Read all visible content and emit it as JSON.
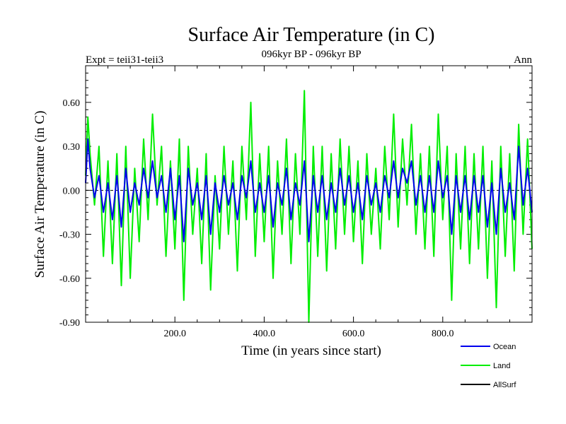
{
  "chart_data": {
    "type": "line",
    "title": "Surface Air Temperature (in C)",
    "subtitle": "096kyr BP - 096kyr BP",
    "left_label": "Expt = teii31-teii3",
    "right_label": "Ann",
    "xlabel": "Time (in years since start)",
    "ylabel": "Surface Air Temperature (in C)",
    "xlim": [
      0,
      1000
    ],
    "ylim": [
      -0.9,
      0.85
    ],
    "xticks": [
      200,
      400,
      600,
      800
    ],
    "xtick_labels": [
      "200.0",
      "400.0",
      "600.0",
      "800.0"
    ],
    "yticks": [
      -0.9,
      -0.6,
      -0.3,
      0.0,
      0.3,
      0.6
    ],
    "ytick_labels": [
      "-0.90",
      "-0.60",
      "-0.30",
      "0.00",
      "0.30",
      "0.60"
    ],
    "zero_line": true,
    "grid": false,
    "legend_position": "bottom-right",
    "series": [
      {
        "name": "Land",
        "color": "#00ee00",
        "points": [
          [
            0,
            0.1
          ],
          [
            5,
            0.5
          ],
          [
            10,
            0.25
          ],
          [
            20,
            -0.1
          ],
          [
            30,
            0.3
          ],
          [
            40,
            -0.45
          ],
          [
            50,
            0.2
          ],
          [
            60,
            -0.5
          ],
          [
            70,
            0.25
          ],
          [
            80,
            -0.65
          ],
          [
            90,
            0.3
          ],
          [
            100,
            -0.6
          ],
          [
            110,
            0.15
          ],
          [
            120,
            -0.35
          ],
          [
            130,
            0.35
          ],
          [
            140,
            -0.2
          ],
          [
            150,
            0.52
          ],
          [
            160,
            -0.1
          ],
          [
            170,
            0.3
          ],
          [
            180,
            -0.45
          ],
          [
            190,
            0.2
          ],
          [
            200,
            -0.4
          ],
          [
            210,
            0.35
          ],
          [
            220,
            -0.75
          ],
          [
            230,
            0.3
          ],
          [
            240,
            -0.3
          ],
          [
            250,
            0.15
          ],
          [
            260,
            -0.5
          ],
          [
            270,
            0.25
          ],
          [
            280,
            -0.68
          ],
          [
            290,
            0.1
          ],
          [
            300,
            -0.4
          ],
          [
            310,
            0.3
          ],
          [
            320,
            -0.3
          ],
          [
            330,
            0.2
          ],
          [
            340,
            -0.55
          ],
          [
            350,
            0.3
          ],
          [
            360,
            -0.2
          ],
          [
            370,
            0.6
          ],
          [
            380,
            -0.45
          ],
          [
            390,
            0.25
          ],
          [
            400,
            -0.35
          ],
          [
            410,
            0.3
          ],
          [
            420,
            -0.6
          ],
          [
            430,
            0.2
          ],
          [
            440,
            -0.3
          ],
          [
            450,
            0.35
          ],
          [
            460,
            -0.5
          ],
          [
            470,
            0.25
          ],
          [
            480,
            -0.3
          ],
          [
            490,
            0.68
          ],
          [
            500,
            -0.9
          ],
          [
            510,
            0.3
          ],
          [
            520,
            -0.45
          ],
          [
            530,
            0.3
          ],
          [
            540,
            -0.55
          ],
          [
            550,
            0.25
          ],
          [
            560,
            -0.4
          ],
          [
            570,
            0.35
          ],
          [
            580,
            -0.3
          ],
          [
            590,
            0.3
          ],
          [
            600,
            -0.35
          ],
          [
            610,
            0.2
          ],
          [
            620,
            -0.5
          ],
          [
            630,
            0.25
          ],
          [
            640,
            -0.3
          ],
          [
            650,
            0.15
          ],
          [
            660,
            -0.4
          ],
          [
            670,
            0.3
          ],
          [
            680,
            -0.2
          ],
          [
            690,
            0.52
          ],
          [
            700,
            -0.25
          ],
          [
            710,
            0.35
          ],
          [
            720,
            -0.1
          ],
          [
            730,
            0.45
          ],
          [
            740,
            -0.3
          ],
          [
            750,
            0.25
          ],
          [
            760,
            -0.4
          ],
          [
            770,
            0.3
          ],
          [
            780,
            -0.45
          ],
          [
            790,
            0.52
          ],
          [
            800,
            -0.2
          ],
          [
            810,
            0.3
          ],
          [
            820,
            -0.75
          ],
          [
            830,
            0.25
          ],
          [
            840,
            -0.4
          ],
          [
            850,
            0.3
          ],
          [
            860,
            -0.5
          ],
          [
            870,
            0.25
          ],
          [
            880,
            -0.4
          ],
          [
            890,
            0.3
          ],
          [
            900,
            -0.6
          ],
          [
            910,
            0.2
          ],
          [
            920,
            -0.8
          ],
          [
            930,
            0.3
          ],
          [
            940,
            -0.45
          ],
          [
            950,
            0.25
          ],
          [
            960,
            -0.55
          ],
          [
            970,
            0.45
          ],
          [
            980,
            -0.3
          ],
          [
            990,
            0.35
          ],
          [
            1000,
            -0.4
          ]
        ]
      },
      {
        "name": "Ocean",
        "color": "#0000ee",
        "points": [
          [
            0,
            0.05
          ],
          [
            5,
            0.35
          ],
          [
            10,
            0.15
          ],
          [
            20,
            -0.05
          ],
          [
            30,
            0.1
          ],
          [
            40,
            -0.15
          ],
          [
            50,
            0.05
          ],
          [
            60,
            -0.2
          ],
          [
            70,
            0.1
          ],
          [
            80,
            -0.25
          ],
          [
            90,
            0.15
          ],
          [
            100,
            -0.15
          ],
          [
            110,
            0.05
          ],
          [
            120,
            -0.1
          ],
          [
            130,
            0.15
          ],
          [
            140,
            -0.05
          ],
          [
            150,
            0.2
          ],
          [
            160,
            -0.05
          ],
          [
            170,
            0.1
          ],
          [
            180,
            -0.15
          ],
          [
            190,
            0.15
          ],
          [
            200,
            -0.2
          ],
          [
            210,
            0.1
          ],
          [
            220,
            -0.35
          ],
          [
            230,
            0.15
          ],
          [
            240,
            -0.1
          ],
          [
            250,
            0.05
          ],
          [
            260,
            -0.2
          ],
          [
            270,
            0.1
          ],
          [
            280,
            -0.3
          ],
          [
            290,
            0.05
          ],
          [
            300,
            -0.15
          ],
          [
            310,
            0.1
          ],
          [
            320,
            -0.1
          ],
          [
            330,
            0.05
          ],
          [
            340,
            -0.2
          ],
          [
            350,
            0.1
          ],
          [
            360,
            -0.05
          ],
          [
            370,
            0.2
          ],
          [
            380,
            -0.15
          ],
          [
            390,
            0.05
          ],
          [
            400,
            -0.15
          ],
          [
            410,
            0.1
          ],
          [
            420,
            -0.25
          ],
          [
            430,
            0.05
          ],
          [
            440,
            -0.1
          ],
          [
            450,
            0.15
          ],
          [
            460,
            -0.2
          ],
          [
            470,
            0.05
          ],
          [
            480,
            -0.1
          ],
          [
            490,
            0.2
          ],
          [
            500,
            -0.35
          ],
          [
            510,
            0.1
          ],
          [
            520,
            -0.15
          ],
          [
            530,
            0.1
          ],
          [
            540,
            -0.2
          ],
          [
            550,
            0.05
          ],
          [
            560,
            -0.15
          ],
          [
            570,
            0.15
          ],
          [
            580,
            -0.1
          ],
          [
            590,
            0.1
          ],
          [
            600,
            -0.15
          ],
          [
            610,
            0.05
          ],
          [
            620,
            -0.2
          ],
          [
            630,
            0.1
          ],
          [
            640,
            -0.1
          ],
          [
            650,
            0.05
          ],
          [
            660,
            -0.15
          ],
          [
            670,
            0.1
          ],
          [
            680,
            -0.05
          ],
          [
            690,
            0.2
          ],
          [
            700,
            -0.05
          ],
          [
            710,
            0.15
          ],
          [
            720,
            0.05
          ],
          [
            730,
            0.2
          ],
          [
            740,
            -0.1
          ],
          [
            750,
            0.1
          ],
          [
            760,
            -0.15
          ],
          [
            770,
            0.1
          ],
          [
            780,
            -0.15
          ],
          [
            790,
            0.2
          ],
          [
            800,
            -0.05
          ],
          [
            810,
            0.1
          ],
          [
            820,
            -0.3
          ],
          [
            830,
            0.1
          ],
          [
            840,
            -0.15
          ],
          [
            850,
            0.1
          ],
          [
            860,
            -0.2
          ],
          [
            870,
            0.1
          ],
          [
            880,
            -0.15
          ],
          [
            890,
            0.1
          ],
          [
            900,
            -0.25
          ],
          [
            910,
            0.05
          ],
          [
            920,
            -0.3
          ],
          [
            930,
            0.15
          ],
          [
            940,
            -0.15
          ],
          [
            950,
            0.05
          ],
          [
            960,
            -0.2
          ],
          [
            970,
            0.3
          ],
          [
            980,
            -0.1
          ],
          [
            990,
            0.15
          ],
          [
            1000,
            -0.15
          ]
        ]
      },
      {
        "name": "AllSurf",
        "color": "#000000",
        "points": []
      }
    ]
  }
}
